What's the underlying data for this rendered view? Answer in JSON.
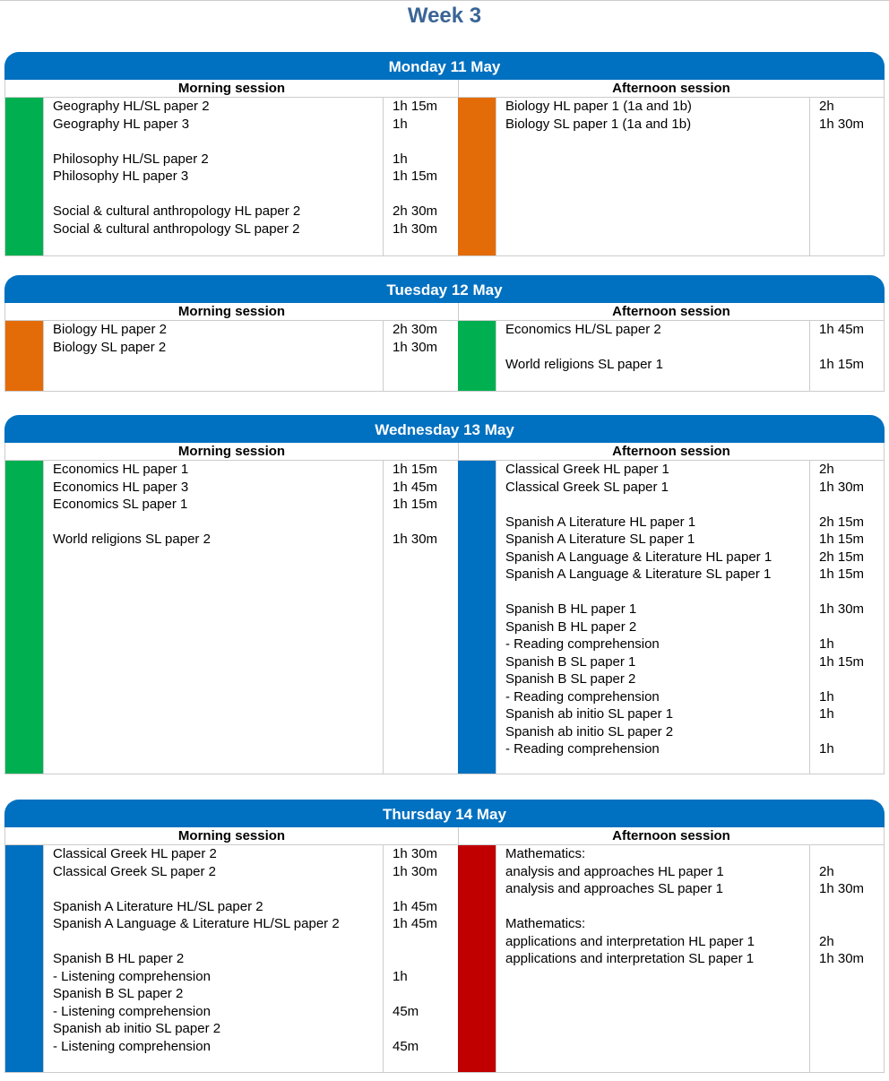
{
  "title": "Week 3",
  "labels": {
    "morning": "Morning session",
    "afternoon": "Afternoon session"
  },
  "colors": {
    "blue": "#0070C0",
    "green": "#00B050",
    "orange": "#E36C09",
    "red": "#C00000"
  },
  "days": [
    {
      "title": "Monday 11 May",
      "morning": {
        "color": "#00B050",
        "lines": [
          [
            "Geography HL/SL paper 2",
            "1h 15m"
          ],
          [
            "Geography HL paper 3",
            "1h"
          ],
          [
            "",
            ""
          ],
          [
            "Philosophy HL/SL paper 2",
            "1h"
          ],
          [
            "Philosophy HL paper 3",
            "1h 15m"
          ],
          [
            "",
            ""
          ],
          [
            "Social & cultural anthropology HL paper 2",
            "2h 30m"
          ],
          [
            "Social & cultural anthropology SL paper 2",
            "1h 30m"
          ]
        ]
      },
      "afternoon": {
        "color": "#E36C09",
        "lines": [
          [
            "Biology HL paper 1 (1a and 1b)",
            "2h"
          ],
          [
            "Biology SL paper 1 (1a and 1b)",
            "1h 30m"
          ]
        ]
      }
    },
    {
      "title": "Tuesday 12 May",
      "morning": {
        "color": "#E36C09",
        "lines": [
          [
            "Biology HL paper 2",
            "2h 30m"
          ],
          [
            "Biology SL paper 2",
            "1h 30m"
          ]
        ]
      },
      "afternoon": {
        "color": "#00B050",
        "lines": [
          [
            "Economics HL/SL paper 2",
            "1h 45m"
          ],
          [
            "",
            ""
          ],
          [
            "World religions SL paper 1",
            "1h 15m"
          ]
        ]
      }
    },
    {
      "title": "Wednesday 13 May",
      "morning": {
        "color": "#00B050",
        "lines": [
          [
            "Economics HL paper 1",
            "1h 15m"
          ],
          [
            "Economics HL paper 3",
            "1h 45m"
          ],
          [
            "Economics SL paper 1",
            "1h 15m"
          ],
          [
            "",
            ""
          ],
          [
            "World religions SL paper 2",
            "1h 30m"
          ]
        ]
      },
      "afternoon": {
        "color": "#0070C0",
        "lines": [
          [
            "Classical Greek HL paper 1",
            "2h"
          ],
          [
            "Classical Greek SL paper 1",
            "1h 30m"
          ],
          [
            "",
            ""
          ],
          [
            "Spanish A Literature HL paper 1",
            "2h 15m"
          ],
          [
            "Spanish A Literature SL paper 1",
            "1h 15m"
          ],
          [
            "Spanish A Language & Literature HL paper 1",
            "2h 15m"
          ],
          [
            "Spanish A Language & Literature SL paper 1",
            "1h 15m"
          ],
          [
            "",
            ""
          ],
          [
            "Spanish B HL paper 1",
            "1h 30m"
          ],
          [
            "Spanish B HL paper 2",
            ""
          ],
          [
            "- Reading comprehension",
            "1h"
          ],
          [
            "Spanish B SL paper 1",
            "1h 15m"
          ],
          [
            "Spanish B SL paper 2",
            ""
          ],
          [
            "- Reading comprehension",
            "1h"
          ],
          [
            "Spanish ab initio SL paper 1",
            "1h"
          ],
          [
            "Spanish ab initio SL paper 2",
            ""
          ],
          [
            "- Reading comprehension",
            "1h"
          ]
        ]
      }
    },
    {
      "title": "Thursday 14 May",
      "morning": {
        "color": "#0070C0",
        "lines": [
          [
            "Classical Greek HL paper 2",
            "1h 30m"
          ],
          [
            "Classical Greek SL paper 2",
            "1h 30m"
          ],
          [
            "",
            ""
          ],
          [
            "Spanish A Literature HL/SL paper 2",
            "1h 45m"
          ],
          [
            "Spanish A Language & Literature HL/SL paper 2",
            "1h 45m"
          ],
          [
            "",
            ""
          ],
          [
            "Spanish B HL paper 2",
            ""
          ],
          [
            "- Listening comprehension",
            "1h"
          ],
          [
            "Spanish B SL paper 2",
            ""
          ],
          [
            "- Listening comprehension",
            "45m"
          ],
          [
            "Spanish ab initio SL paper 2",
            ""
          ],
          [
            "- Listening comprehension",
            "45m"
          ]
        ]
      },
      "afternoon": {
        "color": "#C00000",
        "lines": [
          [
            "Mathematics:",
            ""
          ],
          [
            "analysis and approaches HL paper 1",
            "2h"
          ],
          [
            "analysis and approaches SL paper 1",
            "1h 30m"
          ],
          [
            "",
            ""
          ],
          [
            "Mathematics:",
            ""
          ],
          [
            "applications and interpretation HL paper 1",
            "2h"
          ],
          [
            "applications and interpretation SL paper 1",
            "1h 30m"
          ]
        ]
      }
    }
  ]
}
